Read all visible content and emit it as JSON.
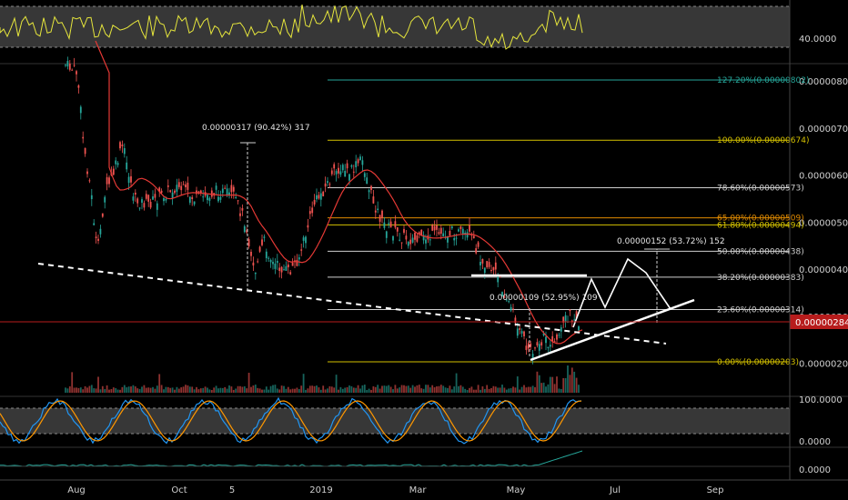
{
  "chart_data": [
    {
      "type": "line",
      "panel": "rsi",
      "axis_labels": [
        "40.0000"
      ],
      "band_shaded": true
    },
    {
      "type": "candlestick",
      "panel": "price",
      "x_tick_labels": [
        "Aug",
        "Oct",
        "5",
        "2019",
        "Mar",
        "May",
        "Jul",
        "Sep"
      ],
      "y_tick_labels": [
        "0.00000800",
        "0.00000700",
        "0.00000600",
        "0.00000500",
        "0.00000400",
        "0.00000300",
        "0.00000200"
      ],
      "current_price": {
        "label": "0.00000284",
        "value": 2.84e-06,
        "color": "#b71c1c"
      },
      "fib_levels": [
        {
          "label": "127.20%(0.00000802)",
          "value": 8.02e-06,
          "color": "#26a69a"
        },
        {
          "label": "100.00%(0.00000674)",
          "value": 6.74e-06,
          "color": "#d4c100"
        },
        {
          "label": "78.60%(0.00000573)",
          "value": 5.73e-06,
          "color": "#cfcfcf"
        },
        {
          "label": "65.00%(0.00000509)",
          "value": 5.09e-06,
          "color": "#e08a00"
        },
        {
          "label": "61.80%(0.00000494)",
          "value": 4.94e-06,
          "color": "#d4c100"
        },
        {
          "label": "50.00%(0.00000438)",
          "value": 4.38e-06,
          "color": "#cfcfcf"
        },
        {
          "label": "38.20%(0.00000383)",
          "value": 3.83e-06,
          "color": "#cfcfcf"
        },
        {
          "label": "23.60%(0.00000314)",
          "value": 3.14e-06,
          "color": "#cfcfcf"
        },
        {
          "label": "0.00%(0.00000203)",
          "value": 2.03e-06,
          "color": "#d4c100"
        }
      ],
      "annotations": [
        {
          "label": "0.00000317 (90.42%) 317"
        },
        {
          "label": "0.00000109 (52.95%) 109"
        },
        {
          "label": "0.00000152 (53.72%) 152"
        }
      ],
      "series": [
        {
          "name": "",
          "kind": "candles",
          "color_up": "#26a69a",
          "color_down": "#ef5350"
        },
        {
          "name": "",
          "kind": "moving_average",
          "color": "#e53935"
        }
      ]
    },
    {
      "type": "line",
      "panel": "stoch_rsi",
      "axis_labels": [
        "100.0000",
        "0.0000"
      ],
      "colors": [
        "#2196f3",
        "#ff9800"
      ]
    },
    {
      "type": "line",
      "panel": "indicator",
      "axis_labels": [
        "0.0000"
      ],
      "colors": [
        "#26a69a"
      ]
    }
  ]
}
